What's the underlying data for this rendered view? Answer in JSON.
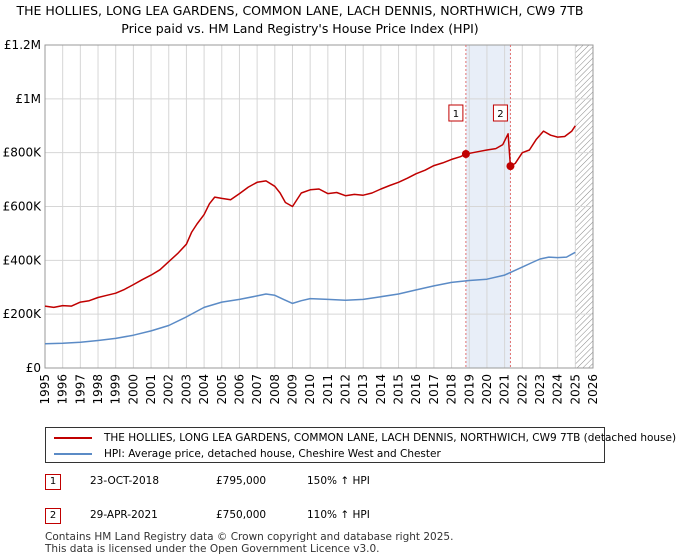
{
  "title": {
    "line1": "THE HOLLIES, LONG LEA GARDENS, COMMON LANE, LACH DENNIS, NORTHWICH, CW9 7TB",
    "line2": "Price paid vs. HM Land Registry's House Price Index (HPI)"
  },
  "colors": {
    "property": "#c00000",
    "hpi": "#5b8bc6",
    "grid": "#d6d6d6",
    "shade": "#e8eef8",
    "hatch": "#888888",
    "vline": "#e07070"
  },
  "chart_data": {
    "type": "line",
    "xlim": [
      1995.0,
      2026.0
    ],
    "ylim": [
      0,
      1200000
    ],
    "y_ticks": [
      {
        "value": 0,
        "label": "£0"
      },
      {
        "value": 200000,
        "label": "£200K"
      },
      {
        "value": 400000,
        "label": "£400K"
      },
      {
        "value": 600000,
        "label": "£600K"
      },
      {
        "value": 800000,
        "label": "£800K"
      },
      {
        "value": 1000000,
        "label": "£1M"
      },
      {
        "value": 1200000,
        "label": "£1.2M"
      }
    ],
    "x_ticks": [
      "1995",
      "1996",
      "1997",
      "1998",
      "1999",
      "2000",
      "2001",
      "2002",
      "2003",
      "2004",
      "2005",
      "2006",
      "2007",
      "2008",
      "2009",
      "2010",
      "2011",
      "2012",
      "2013",
      "2014",
      "2015",
      "2016",
      "2017",
      "2018",
      "2019",
      "2020",
      "2021",
      "2022",
      "2023",
      "2024",
      "2025",
      "2026"
    ],
    "shaded_region": [
      2018.81,
      2021.33
    ],
    "future_hatch_start": 2025.0,
    "series": [
      {
        "name": "THE HOLLIES, LONG LEA GARDENS, COMMON LANE, LACH DENNIS, NORTHWICH, CW9 7TB (detached house)",
        "color": "#c00000",
        "x": [
          1995.0,
          1995.5,
          1996.0,
          1996.5,
          1997.0,
          1997.5,
          1998.0,
          1998.5,
          1999.0,
          1999.5,
          2000.0,
          2000.5,
          2001.0,
          2001.5,
          2002.0,
          2002.5,
          2003.0,
          2003.3,
          2003.6,
          2004.0,
          2004.3,
          2004.6,
          2005.0,
          2005.5,
          2006.0,
          2006.5,
          2007.0,
          2007.5,
          2008.0,
          2008.3,
          2008.6,
          2009.0,
          2009.2,
          2009.5,
          2010.0,
          2010.5,
          2011.0,
          2011.5,
          2012.0,
          2012.5,
          2013.0,
          2013.5,
          2014.0,
          2014.5,
          2015.0,
          2015.5,
          2016.0,
          2016.5,
          2017.0,
          2017.5,
          2018.0,
          2018.5,
          2018.81,
          2019.2,
          2019.6,
          2020.0,
          2020.5,
          2020.9,
          2021.2,
          2021.33,
          2021.6,
          2022.0,
          2022.4,
          2022.8,
          2023.2,
          2023.6,
          2024.0,
          2024.4,
          2024.8,
          2025.0
        ],
        "y": [
          230000,
          225000,
          232000,
          230000,
          245000,
          250000,
          262000,
          270000,
          278000,
          292000,
          310000,
          328000,
          345000,
          365000,
          395000,
          425000,
          460000,
          505000,
          535000,
          570000,
          610000,
          635000,
          630000,
          625000,
          648000,
          672000,
          690000,
          695000,
          675000,
          650000,
          615000,
          600000,
          620000,
          650000,
          662000,
          665000,
          648000,
          652000,
          640000,
          645000,
          642000,
          650000,
          665000,
          678000,
          690000,
          705000,
          722000,
          735000,
          752000,
          762000,
          775000,
          785000,
          795000,
          800000,
          805000,
          810000,
          815000,
          830000,
          870000,
          750000,
          760000,
          800000,
          810000,
          850000,
          880000,
          865000,
          858000,
          860000,
          880000,
          900000
        ]
      },
      {
        "name": "HPI: Average price, detached house, Cheshire West and Chester",
        "color": "#5b8bc6",
        "x": [
          1995.0,
          1996.0,
          1997.0,
          1998.0,
          1999.0,
          2000.0,
          2001.0,
          2002.0,
          2003.0,
          2004.0,
          2005.0,
          2006.0,
          2007.0,
          2007.5,
          2008.0,
          2008.5,
          2009.0,
          2009.5,
          2010.0,
          2011.0,
          2012.0,
          2013.0,
          2014.0,
          2015.0,
          2016.0,
          2017.0,
          2018.0,
          2019.0,
          2020.0,
          2021.0,
          2021.5,
          2022.0,
          2022.5,
          2023.0,
          2023.5,
          2024.0,
          2024.5,
          2025.0
        ],
        "y": [
          90000,
          92000,
          96000,
          102000,
          110000,
          122000,
          138000,
          158000,
          190000,
          225000,
          245000,
          255000,
          268000,
          275000,
          270000,
          255000,
          240000,
          250000,
          258000,
          255000,
          252000,
          255000,
          265000,
          275000,
          290000,
          305000,
          318000,
          325000,
          330000,
          345000,
          360000,
          375000,
          390000,
          405000,
          412000,
          410000,
          412000,
          430000
        ]
      }
    ],
    "sales": [
      {
        "marker": "1",
        "date": "23-OCT-2018",
        "x": 2018.81,
        "price": 795000,
        "price_label": "£795,000",
        "hpi_change": "150% ↑ HPI"
      },
      {
        "marker": "2",
        "date": "29-APR-2021",
        "x": 2021.33,
        "price": 750000,
        "price_label": "£750,000",
        "hpi_change": "110% ↑ HPI"
      }
    ]
  },
  "legend": {
    "property_label": "THE HOLLIES, LONG LEA GARDENS, COMMON LANE, LACH DENNIS, NORTHWICH, CW9 7TB (detached house)",
    "hpi_label": "HPI: Average price, detached house, Cheshire West and Chester"
  },
  "footer": {
    "line1": "Contains HM Land Registry data © Crown copyright and database right 2025.",
    "line2": "This data is licensed under the Open Government Licence v3.0."
  }
}
